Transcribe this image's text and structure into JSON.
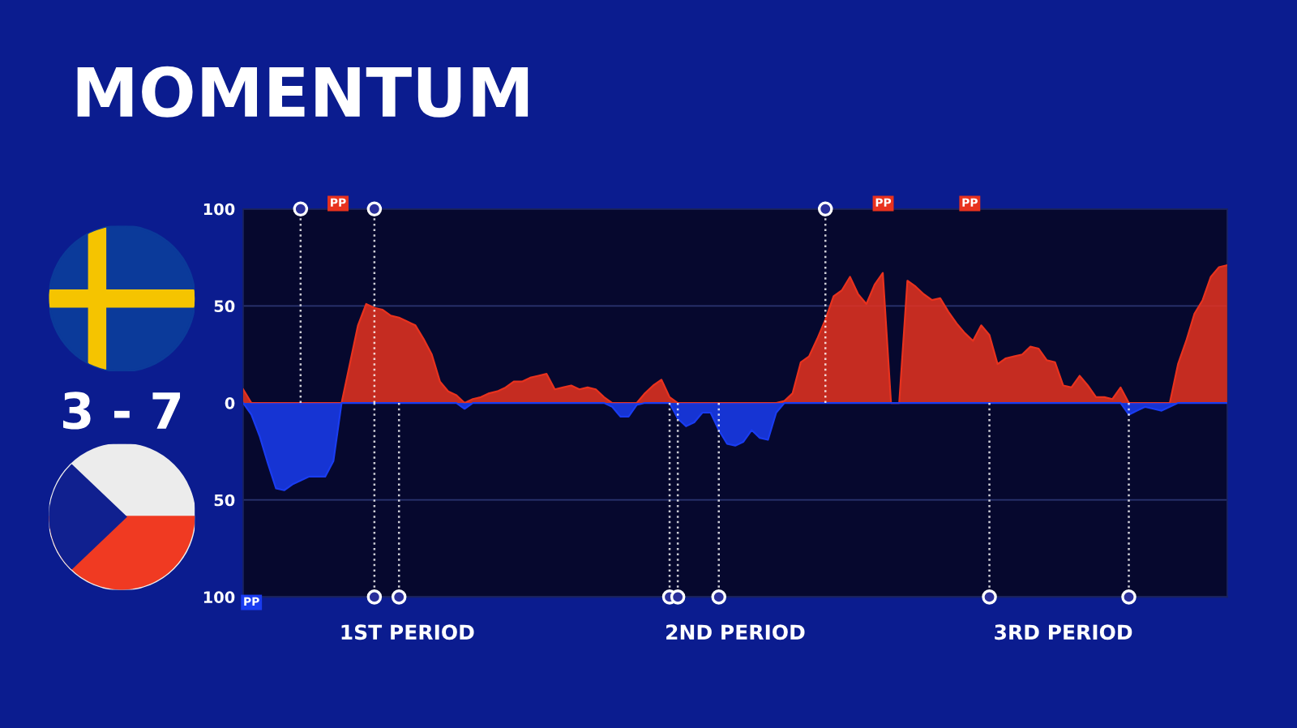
{
  "chart_data": {
    "type": "area",
    "title": "MOMENTUM",
    "annotations": [
      "3 - 7",
      "1ST PERIOD",
      "2ND PERIOD",
      "3RD PERIOD",
      "PP",
      "PP",
      "PP",
      "PP"
    ],
    "categories": [
      null,
      null,
      null,
      null,
      null,
      null,
      null,
      null,
      null,
      null,
      null,
      null,
      null,
      null,
      null,
      null,
      null,
      null,
      null,
      null,
      null,
      null,
      null,
      null,
      null,
      null,
      null,
      null,
      null,
      null,
      null,
      null,
      null,
      null,
      null,
      null,
      null,
      null,
      null,
      null,
      null,
      null,
      null,
      null,
      null,
      null,
      null,
      null,
      null,
      null,
      null,
      null,
      null,
      null,
      null,
      null,
      null,
      null,
      null,
      null,
      null,
      null,
      null,
      null,
      null,
      null,
      null,
      null,
      null,
      null,
      null,
      null,
      null,
      null,
      null,
      null,
      null,
      null,
      null,
      null,
      null,
      null,
      null,
      null,
      null,
      null,
      null,
      null,
      null,
      null,
      null,
      null,
      null,
      null,
      null,
      null,
      null,
      null,
      null,
      null,
      null,
      null,
      null,
      null,
      null,
      null,
      null,
      null,
      null,
      null,
      null,
      null,
      null,
      null,
      null,
      null,
      null,
      null,
      null,
      null,
      null
    ],
    "ylim": [
      -100,
      100
    ],
    "yticks": [
      {
        "value": -100,
        "label": "100"
      },
      {
        "value": -50,
        "label": "50"
      },
      0,
      50,
      100
    ],
    "grid": "y",
    "series": [
      {
        "color": "#e8321e",
        "values": [
          7,
          0,
          0,
          0,
          0,
          0,
          0,
          0,
          0,
          0,
          0,
          0,
          0,
          20,
          40,
          51,
          49,
          48,
          45,
          44,
          42,
          40,
          33,
          25,
          11,
          6,
          4,
          0,
          2,
          3,
          5,
          6,
          8,
          11,
          11,
          13,
          14,
          15,
          7,
          8,
          9,
          7,
          8,
          7,
          3,
          0,
          0,
          0,
          0,
          5,
          9,
          12,
          3,
          0,
          0,
          0,
          0,
          0,
          0,
          0,
          0,
          0,
          0,
          0,
          0,
          0,
          1,
          5,
          21,
          24,
          33,
          43,
          55,
          58,
          65,
          56,
          51,
          61,
          67,
          0,
          0,
          63,
          60,
          56,
          53,
          54,
          47,
          41,
          36,
          32,
          40,
          35,
          20,
          23,
          24,
          25,
          29,
          28,
          22,
          21,
          9,
          8,
          14,
          9,
          3,
          3,
          2,
          8,
          0,
          0,
          0,
          0,
          0,
          0,
          20,
          32,
          46,
          53,
          65,
          70,
          71
        ]
      },
      {
        "color": "#1a3cf0",
        "values": [
          0,
          -6,
          -17,
          -31,
          -44,
          -45,
          -42,
          -40,
          -38,
          -38,
          -38,
          -30,
          0,
          0,
          0,
          0,
          0,
          0,
          0,
          0,
          0,
          0,
          0,
          0,
          0,
          0,
          0,
          -3,
          0,
          0,
          0,
          0,
          0,
          0,
          0,
          0,
          0,
          0,
          0,
          0,
          0,
          0,
          0,
          0,
          0,
          -2,
          -7,
          -7,
          -1,
          0,
          0,
          0,
          0,
          -8,
          -12,
          -10,
          -5,
          -5,
          -14,
          -21,
          -22,
          -20,
          -14,
          -18,
          -19,
          -5,
          0,
          0,
          0,
          0,
          0,
          0,
          0,
          0,
          0,
          0,
          0,
          0,
          0,
          0,
          0,
          0,
          0,
          0,
          0,
          0,
          0,
          0,
          0,
          0,
          0,
          0,
          0,
          0,
          0,
          0,
          0,
          0,
          0,
          0,
          0,
          0,
          0,
          0,
          0,
          0,
          0,
          0,
          -6,
          -4,
          -2,
          -3,
          -4,
          -2,
          0,
          0,
          0,
          0,
          0,
          0,
          0
        ]
      },
      {
        "type": "lollipop",
        "color": "#ffffff",
        "marker": "circle",
        "line_style": "dotted",
        "values": [
          null,
          null,
          null,
          null,
          null,
          null,
          null,
          100,
          null,
          null,
          null,
          null,
          null,
          null,
          null,
          null,
          100,
          null,
          null,
          null,
          null,
          null,
          null,
          null,
          null,
          null,
          null,
          null,
          null,
          null,
          null,
          null,
          null,
          null,
          null,
          null,
          null,
          null,
          null,
          null,
          null,
          null,
          null,
          null,
          null,
          null,
          null,
          null,
          null,
          null,
          null,
          null,
          null,
          null,
          null,
          null,
          null,
          null,
          null,
          null,
          null,
          null,
          null,
          null,
          null,
          null,
          null,
          null,
          null,
          null,
          null,
          100,
          null,
          null,
          null,
          null,
          null,
          null,
          null,
          null,
          null,
          null,
          null,
          null,
          null,
          null,
          null,
          null,
          null,
          null,
          null,
          null,
          null,
          null,
          null,
          null,
          null,
          null,
          null,
          null,
          null,
          null,
          null,
          null,
          null,
          null,
          null,
          null,
          null,
          null,
          null,
          null,
          null,
          null,
          null,
          null,
          null,
          null,
          null,
          null,
          null
        ]
      },
      {
        "type": "lollipop",
        "color": "#ffffff",
        "marker": "circle",
        "line_style": "dotted",
        "values": [
          null,
          null,
          null,
          null,
          null,
          null,
          null,
          null,
          null,
          null,
          null,
          null,
          null,
          null,
          null,
          null,
          -100,
          null,
          null,
          -100,
          null,
          null,
          null,
          null,
          null,
          null,
          null,
          null,
          null,
          null,
          null,
          null,
          null,
          null,
          null,
          null,
          null,
          null,
          null,
          null,
          null,
          null,
          null,
          null,
          null,
          null,
          null,
          null,
          null,
          null,
          null,
          null,
          -100,
          -100,
          null,
          null,
          null,
          null,
          -100,
          null,
          null,
          null,
          null,
          null,
          null,
          null,
          null,
          null,
          null,
          null,
          null,
          null,
          null,
          null,
          null,
          null,
          null,
          null,
          null,
          null,
          null,
          null,
          null,
          null,
          null,
          null,
          null,
          null,
          null,
          null,
          null,
          -100,
          null,
          null,
          null,
          null,
          null,
          null,
          null,
          null,
          null,
          null,
          null,
          null,
          null,
          null,
          null,
          null,
          -100,
          null,
          null,
          null,
          null,
          null,
          null,
          null,
          null,
          null,
          null,
          null,
          null
        ]
      }
    ]
  }
}
